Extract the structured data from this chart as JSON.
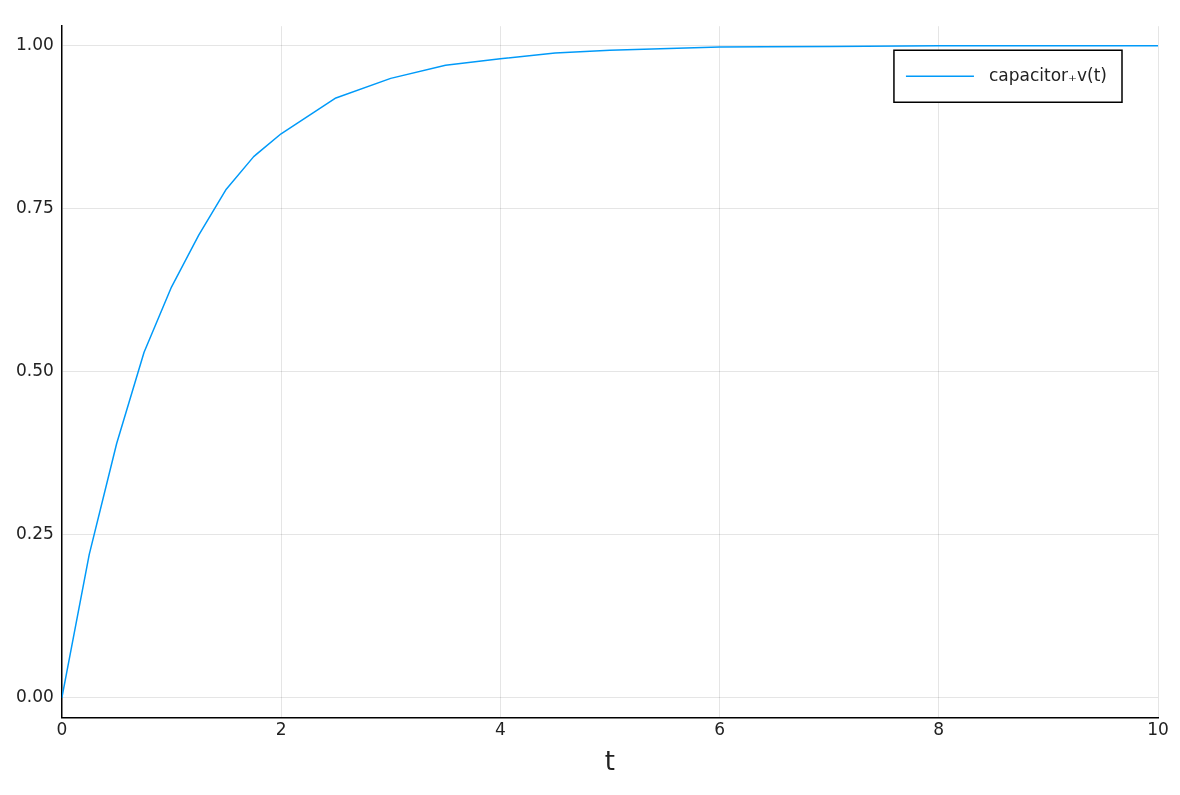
{
  "chart_data": {
    "type": "line",
    "xlabel": "t",
    "x": [
      0,
      0.25,
      0.5,
      0.75,
      1,
      1.25,
      1.5,
      1.75,
      2,
      2.5,
      3,
      3.5,
      4,
      4.5,
      5,
      6,
      7,
      8,
      9,
      10
    ],
    "series": [
      {
        "name": "capacitor₊v(t)",
        "color": "#009af9",
        "values": [
          0,
          0.22,
          0.39,
          0.53,
          0.63,
          0.71,
          0.78,
          0.83,
          0.865,
          0.92,
          0.95,
          0.97,
          0.98,
          0.989,
          0.993,
          0.998,
          0.999,
          1,
          1,
          1
        ]
      }
    ],
    "xlim": [
      0,
      10
    ],
    "ylim": [
      -0.03,
      1.03
    ],
    "xticks": [
      0,
      2,
      4,
      6,
      8,
      10
    ],
    "yticks": [
      {
        "value": 0,
        "label": "0.00"
      },
      {
        "value": 0.25,
        "label": "0.25"
      },
      {
        "value": 0.5,
        "label": "0.50"
      },
      {
        "value": 0.75,
        "label": "0.75"
      },
      {
        "value": 1,
        "label": "1.00"
      }
    ],
    "grid": true,
    "legend": "top right",
    "marker": "none",
    "line_style": "solid"
  }
}
